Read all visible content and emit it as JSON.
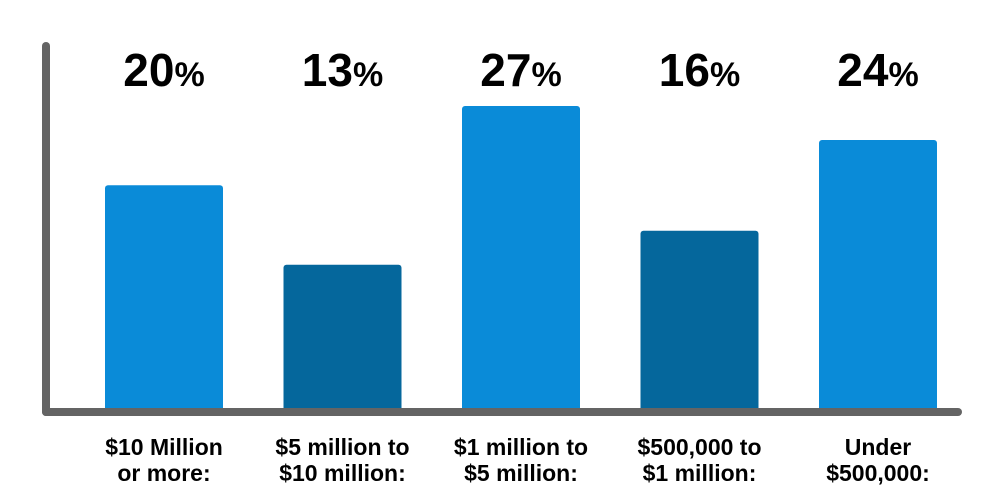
{
  "chart_data": {
    "type": "bar",
    "categories": [
      [
        "$10 Million",
        "or more:"
      ],
      [
        "$5 million to",
        "$10 million:"
      ],
      [
        "$1 million to",
        "$5 million:"
      ],
      [
        "$500,000 to",
        "$1 million:"
      ],
      [
        "Under",
        "$500,000:"
      ]
    ],
    "values": [
      20,
      13,
      27,
      16,
      24
    ],
    "value_labels": [
      {
        "number": "20",
        "suffix": "%"
      },
      {
        "number": "13",
        "suffix": "%"
      },
      {
        "number": "27",
        "suffix": "%"
      },
      {
        "number": "16",
        "suffix": "%"
      },
      {
        "number": "24",
        "suffix": "%"
      }
    ],
    "colors": [
      "#0a8bd8",
      "#05679c",
      "#0a8bd8",
      "#05679c",
      "#0a8bd8"
    ],
    "axis_color": "#646464",
    "ylim": [
      0,
      27
    ],
    "grid": false,
    "legend": "none",
    "title": "",
    "xlabel": "",
    "ylabel": ""
  }
}
